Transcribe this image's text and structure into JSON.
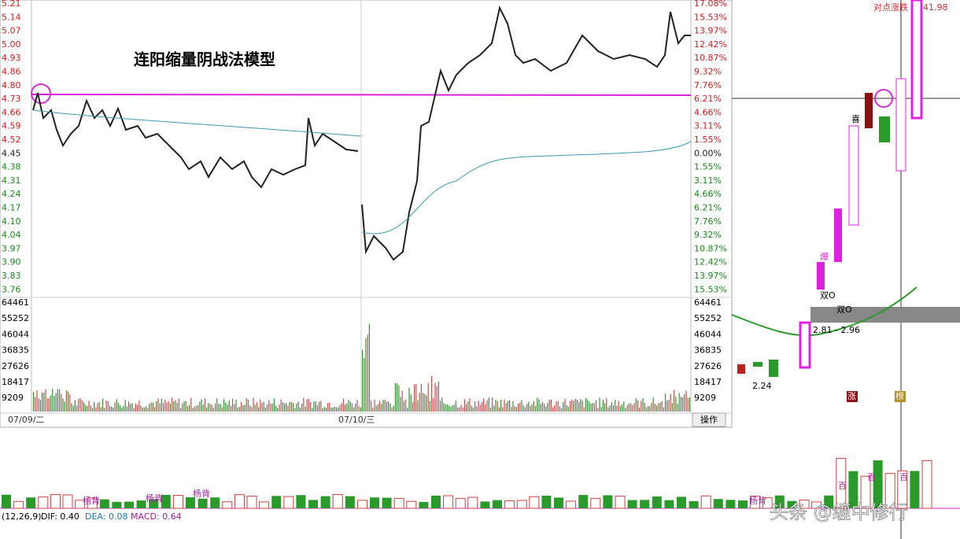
{
  "title": "连阳缩量阴战法模型",
  "left_axis": {
    "price_labels": [
      "5.21",
      "5.14",
      "5.07",
      "5.00",
      "4.93",
      "4.86",
      "4.80",
      "4.73",
      "4.66",
      "4.59",
      "4.52",
      "4.45",
      "4.38",
      "4.31",
      "4.24",
      "4.17",
      "4.10",
      "4.04",
      "3.97",
      "3.90",
      "3.83",
      "3.76"
    ],
    "volume_labels": [
      "64461",
      "55252",
      "46044",
      "36835",
      "27626",
      "18417",
      "9209"
    ]
  },
  "right_axis": {
    "percent_labels": [
      "17.08%",
      "15.53%",
      "13.97%",
      "12.42%",
      "10.87%",
      "9.32%",
      "7.76%",
      "6.21%",
      "4.66%",
      "3.11%",
      "1.55%",
      "0.00%",
      "1.55%",
      "3.11%",
      "4.66%",
      "6.21%",
      "7.76%",
      "9.32%",
      "10.87%",
      "12.42%",
      "13.97%",
      "15.53%"
    ],
    "volume_labels": [
      "64461",
      "55252",
      "46044",
      "36835",
      "27626",
      "18417",
      "9209"
    ]
  },
  "dates": [
    "07/09/二",
    "07/10/三"
  ],
  "button": "操作",
  "kline": {
    "low_label": "2.24",
    "range_label": "2.81 - 2.96",
    "double_o": "双O",
    "double_o_2": "双O",
    "bao": "爆",
    "zhang": "涨",
    "bang": "榜",
    "high_label": "41.98",
    "header": "对点涨跌",
    "xi": "喜"
  },
  "macd": {
    "params": "(12,26,9)",
    "dif": "DIF: 0.40",
    "dea": "DEA: 0.08",
    "macd": "MACD: 0.64",
    "tags": [
      "杨背",
      "杨背",
      "杨背",
      "杨背"
    ],
    "bai": [
      "百",
      "百",
      "百"
    ]
  },
  "watermark": "头条 @缠中修行"
}
